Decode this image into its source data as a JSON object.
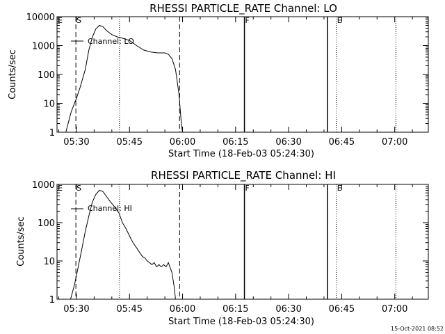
{
  "footer_date": "15-Oct-2021 08:52",
  "chart_data": [
    {
      "type": "line",
      "title": "RHESSI PARTICLE_RATE Channel: LO",
      "xlabel": "Start Time (18-Feb-03 05:24:30)",
      "ylabel": "Counts/sec",
      "yscale": "log",
      "xlim": [
        "05:24:30",
        "07:09:30"
      ],
      "ylim": [
        1,
        10000
      ],
      "x_ticks": [
        "05:30",
        "05:45",
        "06:00",
        "06:15",
        "06:30",
        "06:45",
        "07:00"
      ],
      "y_ticks": [
        "1",
        "10",
        "100",
        "1000",
        "10000"
      ],
      "legend": "Channel: LO",
      "markers": [
        {
          "label": "E",
          "time": "05:24:30",
          "style": "none"
        },
        {
          "label": "S",
          "time": "05:29:50",
          "style": "dashed"
        },
        {
          "label": "",
          "time": "05:59:10",
          "style": "dashed"
        },
        {
          "label": "",
          "time": "05:42:10",
          "style": "dotted"
        },
        {
          "label": "F",
          "time": "06:17:30",
          "style": "solid"
        },
        {
          "label": "",
          "time": "06:41:00",
          "style": "solid"
        },
        {
          "label": "E",
          "time": "06:43:30",
          "style": "dotted"
        },
        {
          "label": "",
          "time": "07:00:20",
          "style": "dotted"
        }
      ],
      "series": [
        {
          "name": "Channel: LO",
          "x": [
            "05:27:00",
            "05:28:30",
            "05:30:00",
            "05:31:00",
            "05:32:30",
            "05:33:30",
            "05:34:30",
            "05:35:30",
            "05:36:30",
            "05:37:30",
            "05:38:30",
            "05:40:00",
            "05:41:30",
            "05:43:00",
            "05:45:00",
            "05:47:00",
            "05:49:00",
            "05:51:00",
            "05:53:00",
            "05:55:00",
            "05:56:00",
            "05:57:00",
            "05:58:00",
            "05:59:00",
            "05:59:40",
            "06:00:00"
          ],
          "values": [
            1,
            5,
            15,
            35,
            150,
            700,
            2000,
            3800,
            5000,
            4500,
            3300,
            2400,
            2000,
            1800,
            1500,
            1000,
            700,
            600,
            560,
            560,
            500,
            350,
            150,
            20,
            2,
            1
          ]
        }
      ]
    },
    {
      "type": "line",
      "title": "RHESSI PARTICLE_RATE Channel: HI",
      "xlabel": "Start Time (18-Feb-03 05:24:30)",
      "ylabel": "Counts/sec",
      "yscale": "log",
      "xlim": [
        "05:24:30",
        "07:09:30"
      ],
      "ylim": [
        1,
        1000
      ],
      "x_ticks": [
        "05:30",
        "05:45",
        "06:00",
        "06:15",
        "06:30",
        "06:45",
        "07:00"
      ],
      "y_ticks": [
        "1",
        "10",
        "100",
        "1000"
      ],
      "legend": "Channel: HI",
      "markers": [
        {
          "label": "E",
          "time": "05:24:30",
          "style": "none"
        },
        {
          "label": "S",
          "time": "05:29:50",
          "style": "dashed"
        },
        {
          "label": "",
          "time": "05:59:10",
          "style": "dashed"
        },
        {
          "label": "",
          "time": "05:42:10",
          "style": "dotted"
        },
        {
          "label": "F",
          "time": "06:17:30",
          "style": "solid"
        },
        {
          "label": "",
          "time": "06:41:00",
          "style": "solid"
        },
        {
          "label": "E",
          "time": "06:43:30",
          "style": "dotted"
        },
        {
          "label": "",
          "time": "07:00:20",
          "style": "dotted"
        }
      ],
      "series": [
        {
          "name": "Channel: HI",
          "x": [
            "05:28:20",
            "05:29:30",
            "05:30:30",
            "05:31:30",
            "05:32:30",
            "05:33:30",
            "05:34:30",
            "05:35:30",
            "05:36:30",
            "05:37:30",
            "05:38:30",
            "05:39:30",
            "05:40:30",
            "05:42:00",
            "05:43:00",
            "05:44:00",
            "05:45:00",
            "05:46:00",
            "05:47:00",
            "05:48:00",
            "05:48:40",
            "05:49:20",
            "05:50:00",
            "05:50:40",
            "05:51:20",
            "05:52:00",
            "05:52:40",
            "05:53:20",
            "05:54:00",
            "05:54:40",
            "05:55:20",
            "05:56:00",
            "05:57:00",
            "05:57:40",
            "05:58:00"
          ],
          "values": [
            1,
            2.5,
            7,
            20,
            60,
            150,
            350,
            550,
            700,
            650,
            480,
            360,
            280,
            180,
            100,
            70,
            45,
            30,
            22,
            16,
            13,
            12,
            10,
            9,
            8,
            9,
            7,
            8,
            7,
            8,
            7,
            9,
            5,
            2,
            1
          ]
        }
      ]
    }
  ]
}
